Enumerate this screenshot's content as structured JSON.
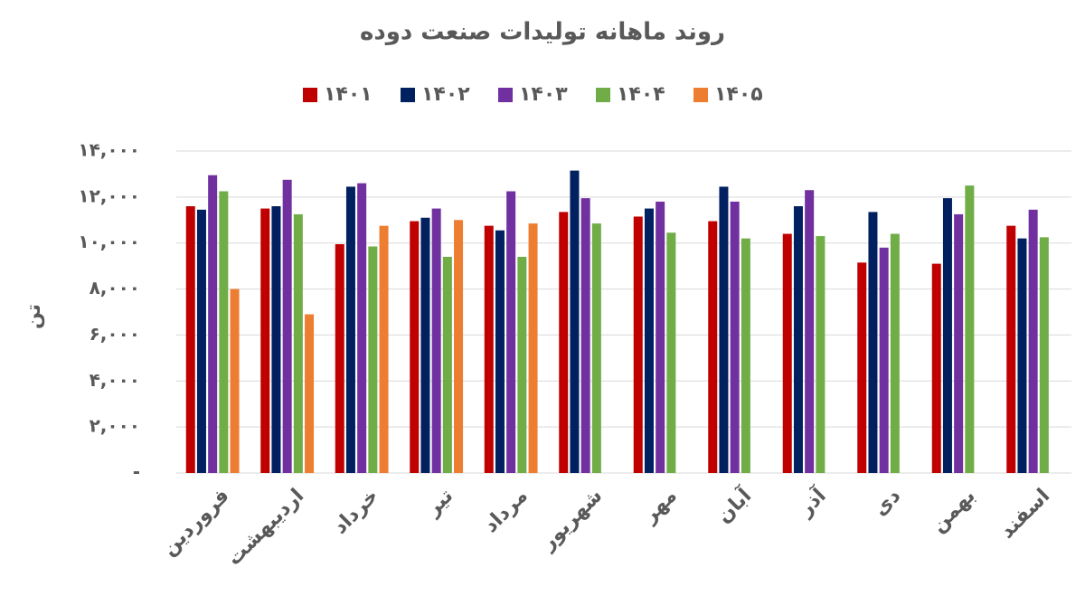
{
  "chart_data": {
    "type": "bar",
    "title": "روند ماهانه تولیدات صنعت دوده",
    "y_label": "تن",
    "categories": [
      "فروردین",
      "اردیبهشت",
      "خرداد",
      "تیر",
      "مرداد",
      "شهریور",
      "مهر",
      "آبان",
      "آذر",
      "دی",
      "بهمن",
      "اسفند"
    ],
    "series": [
      {
        "name": "۱۴۰۱",
        "color": "#c00000",
        "values": [
          11600,
          11500,
          9950,
          10950,
          10750,
          11350,
          11150,
          10950,
          10400,
          9150,
          9100,
          10750
        ]
      },
      {
        "name": "۱۴۰۲",
        "color": "#002060",
        "values": [
          11450,
          11600,
          12450,
          11100,
          10550,
          13150,
          11500,
          12450,
          11600,
          11350,
          11950,
          10200
        ]
      },
      {
        "name": "۱۴۰۳",
        "color": "#7030a0",
        "values": [
          12950,
          12750,
          12600,
          11500,
          12250,
          11950,
          11800,
          11800,
          12300,
          9800,
          11250,
          11450
        ]
      },
      {
        "name": "۱۴۰۴",
        "color": "#70ad47",
        "values": [
          12250,
          11250,
          9850,
          9400,
          9400,
          10850,
          10450,
          10200,
          10300,
          10400,
          12500,
          10250
        ]
      },
      {
        "name": "۱۴۰۵",
        "color": "#ed7d31",
        "values": [
          8000,
          6900,
          10750,
          11000,
          10850,
          null,
          null,
          null,
          null,
          null,
          null,
          null
        ]
      }
    ],
    "ylim": [
      0,
      14000
    ],
    "yticks": [
      {
        "value": 0,
        "label": "-"
      },
      {
        "value": 2000,
        "label": "۲,۰۰۰"
      },
      {
        "value": 4000,
        "label": "۴,۰۰۰"
      },
      {
        "value": 6000,
        "label": "۶,۰۰۰"
      },
      {
        "value": 8000,
        "label": "۸,۰۰۰"
      },
      {
        "value": 10000,
        "label": "۱۰,۰۰۰"
      },
      {
        "value": 12000,
        "label": "۱۲,۰۰۰"
      },
      {
        "value": 14000,
        "label": "۱۴,۰۰۰"
      }
    ],
    "grid": true
  }
}
